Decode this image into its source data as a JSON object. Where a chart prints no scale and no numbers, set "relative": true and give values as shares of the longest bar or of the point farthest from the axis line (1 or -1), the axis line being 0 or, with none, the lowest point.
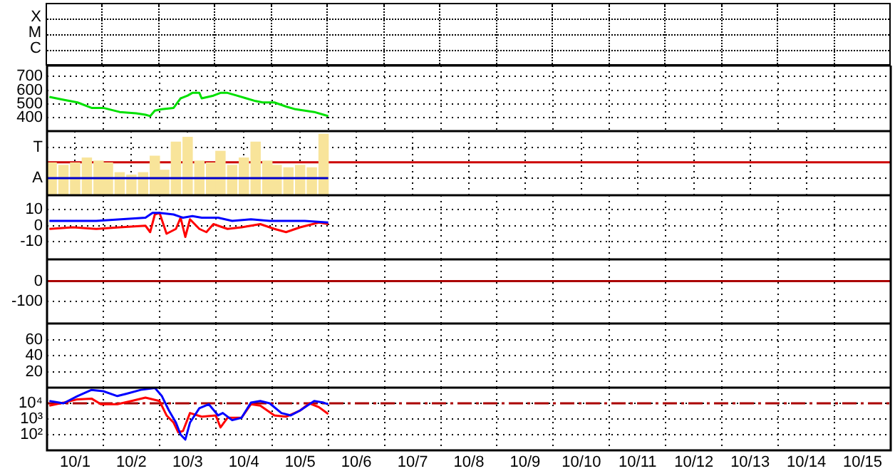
{
  "chart_data": [
    {
      "type": "other",
      "annotations": [
        "X",
        "M",
        "C"
      ]
    },
    {
      "type": "line",
      "marker": "none",
      "ylim": [
        300,
        780
      ],
      "yticks": [
        400,
        500,
        600,
        700
      ],
      "xlim": [
        "--10-01",
        "--10-16"
      ],
      "grid": true,
      "tick_labels": "y",
      "series": [
        {
          "color": "#00e000",
          "x": [
            "--10-01T01:00",
            "--10-01T07:00",
            "--10-01T13:00",
            "--10-01T19:00",
            "--10-02T00:00",
            "--10-02T07:00",
            "--10-02T14:00",
            "--10-02T18:00",
            "--10-02T20:00",
            "--10-02T22:00",
            "--10-03T01:00",
            "--10-03T06:00",
            "--10-03T09:00",
            "--10-03T12:00",
            "--10-03T14:00",
            "--10-03T17:00",
            "--10-03T18:00",
            "--10-03T23:00",
            "--10-04T02:00",
            "--10-04T05:00",
            "--10-04T09:00",
            "--10-04T13:00",
            "--10-04T17:00",
            "--10-04T20:00",
            "--10-05T01:00",
            "--10-05T06:00",
            "--10-05T10:00",
            "--10-05T14:00",
            "--10-05T18:00",
            "--10-05T22:00",
            "--10-06T00:00"
          ],
          "values": [
            550,
            530,
            510,
            470,
            470,
            440,
            430,
            420,
            410,
            450,
            460,
            470,
            540,
            560,
            580,
            580,
            540,
            560,
            580,
            580,
            560,
            540,
            520,
            510,
            510,
            480,
            460,
            450,
            440,
            420,
            410
          ]
        }
      ]
    },
    {
      "type": "bar",
      "relative": true,
      "marker": "none",
      "xlim": [
        "--10-01",
        "--10-16"
      ],
      "grid": true,
      "tick_labels": false,
      "ref_lines": [
        {
          "axis": "y",
          "value": 0.54,
          "color": "#cc0000"
        }
      ],
      "annotations": [
        "T",
        "A"
      ],
      "series": [
        {
          "color": "#f8e49a",
          "x": [
            "--10-01T02:00",
            "--10-01T07:00",
            "--10-01T12:00",
            "--10-01T17:00",
            "--10-01T22:00",
            "--10-02T02:00",
            "--10-02T07:00",
            "--10-02T12:00",
            "--10-02T17:00",
            "--10-02T22:00",
            "--10-03T02:00",
            "--10-03T07:00",
            "--10-03T12:00",
            "--10-03T17:00",
            "--10-03T22:00",
            "--10-04T02:00",
            "--10-04T07:00",
            "--10-04T12:00",
            "--10-04T17:00",
            "--10-04T22:00",
            "--10-05T02:00",
            "--10-05T07:00",
            "--10-05T12:00",
            "--10-05T17:00",
            "--10-05T22:00"
          ],
          "values": [
            0.53,
            0.49,
            0.53,
            0.61,
            0.56,
            0.53,
            0.37,
            0.33,
            0.37,
            0.64,
            0.41,
            0.87,
            0.95,
            0.56,
            0.53,
            0.72,
            0.49,
            0.61,
            0.87,
            0.56,
            0.49,
            0.45,
            0.49,
            0.45,
            1.0
          ]
        },
        {
          "type": "line",
          "color": "#0000cc",
          "x": [
            "--10-01",
            "--10-06"
          ],
          "values": [
            0.28,
            0.28
          ]
        }
      ]
    },
    {
      "type": "line",
      "marker": "none",
      "ylim": [
        -21,
        19
      ],
      "yticks": [
        -10,
        0,
        10
      ],
      "xlim": [
        "--10-01",
        "--10-16"
      ],
      "grid": true,
      "tick_labels": "y",
      "series": [
        {
          "color": "#0000ff",
          "x": [
            "--10-01T01:00",
            "--10-01T21:00",
            "--10-02T18:00",
            "--10-02T21:00",
            "--10-03T00:00",
            "--10-03T06:00",
            "--10-03T10:00",
            "--10-03T14:00",
            "--10-03T18:00",
            "--10-04T01:00",
            "--10-04T07:00",
            "--10-04T15:00",
            "--10-04T23:00",
            "--10-05T08:00",
            "--10-05T14:00",
            "--10-06T00:00"
          ],
          "values": [
            3,
            3,
            5,
            8,
            8,
            7,
            5,
            6,
            5,
            5,
            3,
            4,
            3,
            3,
            3,
            2
          ]
        },
        {
          "color": "#ff0000",
          "x": [
            "--10-01T01:00",
            "--10-01T11:00",
            "--10-01T21:00",
            "--10-02T07:00",
            "--10-02T18:00",
            "--10-02T20:00",
            "--10-02T22:00",
            "--10-03T00:00",
            "--10-03T03:00",
            "--10-03T07:00",
            "--10-03T09:00",
            "--10-03T11:00",
            "--10-03T13:00",
            "--10-03T17:00",
            "--10-03T20:00",
            "--10-03T23:00",
            "--10-04T05:00",
            "--10-04T11:00",
            "--10-04T19:00",
            "--10-05T01:00",
            "--10-05T06:00",
            "--10-05T12:00",
            "--10-05T20:00",
            "--10-06T00:00"
          ],
          "values": [
            -2,
            -1,
            -2,
            -1,
            0,
            -4,
            7,
            8,
            -5,
            -2,
            5,
            -7,
            4,
            -2,
            -4,
            1,
            -2,
            -1,
            1,
            -2,
            -4,
            -1,
            2,
            1
          ]
        }
      ]
    },
    {
      "type": "line",
      "ylim": [
        -206,
        106
      ],
      "yticks": [
        -100,
        0
      ],
      "xlim": [
        "--10-01",
        "--10-16"
      ],
      "grid": true,
      "tick_labels": "y",
      "ref_lines": [
        {
          "axis": "y",
          "value": 0,
          "color": "#aa0000"
        }
      ]
    },
    {
      "type": "line",
      "ylim": [
        0,
        80
      ],
      "yticks": [
        20,
        40,
        60
      ],
      "xlim": [
        "--10-01",
        "--10-16"
      ],
      "grid": true,
      "tick_labels": "y"
    },
    {
      "type": "line",
      "marker": "none",
      "log": true,
      "ylim": [
        10,
        100000
      ],
      "yticks": [
        {
          "value": 100,
          "label": "10²"
        },
        {
          "value": 1000,
          "label": "10³"
        },
        {
          "value": 10000,
          "label": "10⁴"
        }
      ],
      "xlim": [
        "--10-01",
        "--10-16"
      ],
      "xticks": [
        {
          "value": "--10-01T12:00",
          "label": "10/1"
        },
        {
          "value": "--10-02",
          "label": null
        },
        {
          "value": "--10-02T12:00",
          "label": "10/2"
        },
        {
          "value": "--10-03",
          "label": null
        },
        {
          "value": "--10-03T12:00",
          "label": "10/3"
        },
        {
          "value": "--10-04",
          "label": null
        },
        {
          "value": "--10-04T12:00",
          "label": "10/4"
        },
        {
          "value": "--10-05",
          "label": null
        },
        {
          "value": "--10-05T12:00",
          "label": "10/5"
        },
        {
          "value": "--10-06",
          "label": null
        },
        {
          "value": "--10-06T12:00",
          "label": "10/6"
        },
        {
          "value": "--10-07",
          "label": null
        },
        {
          "value": "--10-07T12:00",
          "label": "10/7"
        },
        {
          "value": "--10-08",
          "label": null
        },
        {
          "value": "--10-08T12:00",
          "label": "10/8"
        },
        {
          "value": "--10-09",
          "label": null
        },
        {
          "value": "--10-09T12:00",
          "label": "10/9"
        },
        {
          "value": "--10-10",
          "label": null
        },
        {
          "value": "--10-10T12:00",
          "label": "10/10"
        },
        {
          "value": "--10-11",
          "label": null
        },
        {
          "value": "--10-11T12:00",
          "label": "10/11"
        },
        {
          "value": "--10-12",
          "label": null
        },
        {
          "value": "--10-12T12:00",
          "label": "10/12"
        },
        {
          "value": "--10-13",
          "label": null
        },
        {
          "value": "--10-13T12:00",
          "label": "10/13"
        },
        {
          "value": "--10-14",
          "label": null
        },
        {
          "value": "--10-14T12:00",
          "label": "10/14"
        },
        {
          "value": "--10-15",
          "label": null
        },
        {
          "value": "--10-15T12:00",
          "label": "10/15"
        }
      ],
      "grid": true,
      "ref_lines": [
        {
          "axis": "y",
          "value": 10000,
          "color": "#aa0000",
          "line_style": "dashed"
        }
      ],
      "series": [
        {
          "color": "#0000ff",
          "x": [
            "--10-01T01:00",
            "--10-01T07:00",
            "--10-01T13:00",
            "--10-01T19:00",
            "--10-02T00:00",
            "--10-02T06:00",
            "--10-02T10:00",
            "--10-02T16:00",
            "--10-02T22:00",
            "--10-03T01:00",
            "--10-03T04:00",
            "--10-03T07:00",
            "--10-03T09:00",
            "--10-03T11:00",
            "--10-03T13:00",
            "--10-03T17:00",
            "--10-03T21:00",
            "--10-04T01:00",
            "--10-04T03:00",
            "--10-04T07:00",
            "--10-04T11:00",
            "--10-04T15:00",
            "--10-04T19:00",
            "--10-04T23:00",
            "--10-05T04:00",
            "--10-05T08:00",
            "--10-05T12:00",
            "--10-05T18:00",
            "--10-05T22:00",
            "--10-06T00:00"
          ],
          "values": [
            14000,
            10000,
            29000,
            72000,
            59000,
            29000,
            41000,
            72000,
            96000,
            29000,
            3500,
            590,
            100,
            49,
            590,
            4900,
            8700,
            1700,
            2400,
            840,
            1200,
            11000,
            14000,
            10000,
            2400,
            1700,
            3500,
            14000,
            11000,
            8700
          ]
        },
        {
          "color": "#ff0000",
          "x": [
            "--10-01T01:00",
            "--10-01T07:00",
            "--10-01T13:00",
            "--10-01T19:00",
            "--10-01T23:00",
            "--10-02T06:00",
            "--10-02T12:00",
            "--10-02T18:00",
            "--10-03T00:00",
            "--10-03T03:00",
            "--10-03T06:00",
            "--10-03T08:00",
            "--10-03T10:00",
            "--10-03T13:00",
            "--10-03T18:00",
            "--10-04T00:00",
            "--10-04T02:00",
            "--10-04T05:00",
            "--10-04T11:00",
            "--10-04T15:00",
            "--10-04T19:00",
            "--10-05T01:00",
            "--10-05T06:00",
            "--10-05T12:00",
            "--10-05T16:00",
            "--10-05T20:00",
            "--10-06T00:00"
          ],
          "values": [
            7100,
            11000,
            18000,
            20000,
            8700,
            8700,
            14000,
            23000,
            14000,
            1700,
            590,
            140,
            170,
            2400,
            1400,
            1700,
            290,
            1200,
            1200,
            8700,
            7100,
            1700,
            1400,
            3500,
            10000,
            5700,
            2100
          ]
        }
      ]
    }
  ]
}
